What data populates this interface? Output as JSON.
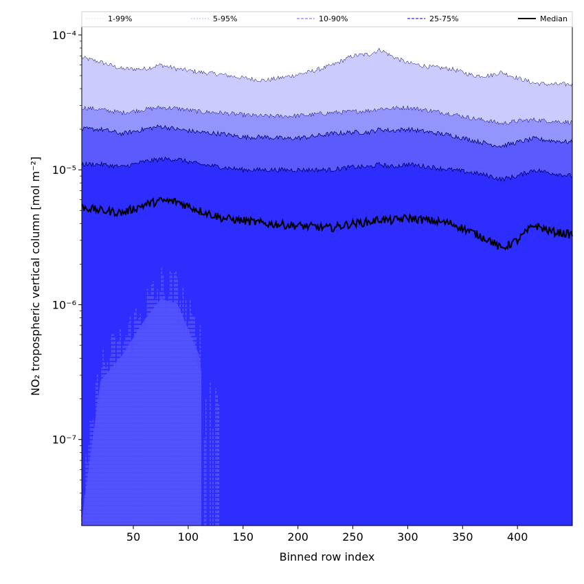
{
  "chart_data": {
    "type": "area",
    "title": "",
    "xlabel": "Binned row index",
    "ylabel": "NO₂ tropospheric vertical column [mol m⁻²]",
    "xlim": [
      3,
      450
    ],
    "ylim": [
      2.3e-08,
      0.000115
    ],
    "yscale": "log",
    "grid": false,
    "legend_position": "top",
    "x_ticks": [
      50,
      100,
      150,
      200,
      250,
      300,
      350,
      400
    ],
    "y_ticks": [
      {
        "value": 1e-07,
        "label": "10⁻⁷"
      },
      {
        "value": 1e-06,
        "label": "10⁻⁶"
      },
      {
        "value": 1e-05,
        "label": "10⁻⁵"
      },
      {
        "value": 0.0001,
        "label": "10⁻⁴"
      }
    ],
    "x": [
      3,
      20,
      40,
      60,
      75,
      90,
      110,
      130,
      150,
      170,
      190,
      210,
      230,
      250,
      265,
      275,
      285,
      300,
      320,
      340,
      360,
      375,
      385,
      400,
      415,
      430,
      450
    ],
    "series": [
      {
        "name": "1-99%",
        "lower": [
          3e-08,
          3.2e-07,
          5e-07,
          9e-07,
          1.3e-06,
          1.2e-06,
          5e-07,
          2.3e-08,
          2.3e-08,
          2.3e-08,
          2.3e-08,
          2.3e-08,
          2.3e-08,
          2.3e-08,
          2.3e-08,
          2.3e-08,
          2.3e-08,
          2.3e-08,
          2.3e-08,
          2.3e-08,
          2.3e-08,
          2.3e-08,
          2.3e-08,
          2.3e-08,
          2.3e-08,
          2.3e-08,
          2.3e-08
        ],
        "upper": [
          6.8e-05,
          6.3e-05,
          5.6e-05,
          5.6e-05,
          6e-05,
          5.6e-05,
          5.3e-05,
          5.1e-05,
          4.8e-05,
          4.6e-05,
          4.9e-05,
          5.3e-05,
          5.9e-05,
          7e-05,
          7.2e-05,
          7.8e-05,
          7e-05,
          6.2e-05,
          5.8e-05,
          5.6e-05,
          5e-05,
          5e-05,
          5.3e-05,
          4.8e-05,
          4.4e-05,
          4.3e-05,
          4.3e-05
        ]
      },
      {
        "name": "5-95%",
        "lower": [
          2.3e-08,
          2.3e-08,
          2.3e-08,
          2.3e-08,
          2.3e-08,
          2.3e-08,
          2.3e-08,
          2.3e-08,
          2.3e-08,
          2.3e-08,
          2.3e-08,
          2.3e-08,
          2.3e-08,
          2.3e-08,
          2.3e-08,
          2.3e-08,
          2.3e-08,
          2.3e-08,
          2.3e-08,
          2.3e-08,
          2.3e-08,
          2.3e-08,
          2.3e-08,
          2.3e-08,
          2.3e-08,
          2.3e-08,
          2.3e-08
        ],
        "upper": [
          2.9e-05,
          2.8e-05,
          2.65e-05,
          2.8e-05,
          2.9e-05,
          2.85e-05,
          2.7e-05,
          2.65e-05,
          2.55e-05,
          2.5e-05,
          2.5e-05,
          2.55e-05,
          2.65e-05,
          2.7e-05,
          2.75e-05,
          2.85e-05,
          2.85e-05,
          2.9e-05,
          2.75e-05,
          2.6e-05,
          2.4e-05,
          2.3e-05,
          2.2e-05,
          2.3e-05,
          2.35e-05,
          2.3e-05,
          2.25e-05
        ]
      },
      {
        "name": "10-90%",
        "lower": [
          2.3e-08,
          2.3e-08,
          2.3e-08,
          2.3e-08,
          2.3e-08,
          2.3e-08,
          2.3e-08,
          2.3e-08,
          2.3e-08,
          2.3e-08,
          2.3e-08,
          2.3e-08,
          2.3e-08,
          2.3e-08,
          2.3e-08,
          2.3e-08,
          2.3e-08,
          2.3e-08,
          2.3e-08,
          2.3e-08,
          2.3e-08,
          2.3e-08,
          2.3e-08,
          2.3e-08,
          2.3e-08,
          2.3e-08,
          2.3e-08
        ],
        "upper": [
          2e-05,
          2e-05,
          1.85e-05,
          2e-05,
          2.1e-05,
          2e-05,
          1.9e-05,
          1.85e-05,
          1.75e-05,
          1.75e-05,
          1.7e-05,
          1.75e-05,
          1.85e-05,
          1.9e-05,
          1.9e-05,
          2e-05,
          1.95e-05,
          2e-05,
          1.9e-05,
          1.8e-05,
          1.65e-05,
          1.55e-05,
          1.5e-05,
          1.6e-05,
          1.7e-05,
          1.65e-05,
          1.6e-05
        ]
      },
      {
        "name": "25-75%",
        "lower": [
          2.3e-08,
          2.3e-08,
          2.3e-08,
          2.3e-08,
          2.3e-08,
          2.3e-08,
          2.3e-08,
          2.3e-08,
          2.3e-08,
          2.3e-08,
          2.3e-08,
          2.3e-08,
          2.3e-08,
          2.3e-08,
          2.3e-08,
          2.3e-08,
          2.3e-08,
          2.3e-08,
          2.3e-08,
          2.3e-08,
          2.3e-08,
          2.3e-08,
          2.3e-08,
          2.3e-08,
          2.3e-08,
          2.3e-08,
          2.3e-08
        ],
        "upper": [
          1.1e-05,
          1.1e-05,
          1.05e-05,
          1.15e-05,
          1.2e-05,
          1.2e-05,
          1.1e-05,
          1.05e-05,
          1e-05,
          1e-05,
          1e-05,
          1e-05,
          1e-05,
          1.05e-05,
          1.05e-05,
          1.1e-05,
          1.05e-05,
          1.1e-05,
          1.05e-05,
          1e-05,
          9.5e-06,
          9e-06,
          8.5e-06,
          9e-06,
          1e-05,
          9.5e-06,
          9e-06
        ]
      },
      {
        "name": "Median",
        "values": [
          5.3e-06,
          5e-06,
          4.8e-06,
          5.5e-06,
          5.9e-06,
          5.8e-06,
          5e-06,
          4.4e-06,
          4.2e-06,
          4e-06,
          3.9e-06,
          3.8e-06,
          3.7e-06,
          4e-06,
          4.1e-06,
          4.3e-06,
          4.2e-06,
          4.4e-06,
          4.2e-06,
          4e-06,
          3.4e-06,
          3e-06,
          2.6e-06,
          3e-06,
          3.9e-06,
          3.5e-06,
          3.3e-06
        ]
      }
    ],
    "colors": {
      "band_1_99": "#cbcbfe",
      "band_5_95": "#9494fd",
      "band_10_90": "#5b5bfd",
      "band_25_75": "#2d2dfd",
      "low_spikes": "#5555fd",
      "median": "#000000",
      "band_edge": "#000066"
    }
  }
}
